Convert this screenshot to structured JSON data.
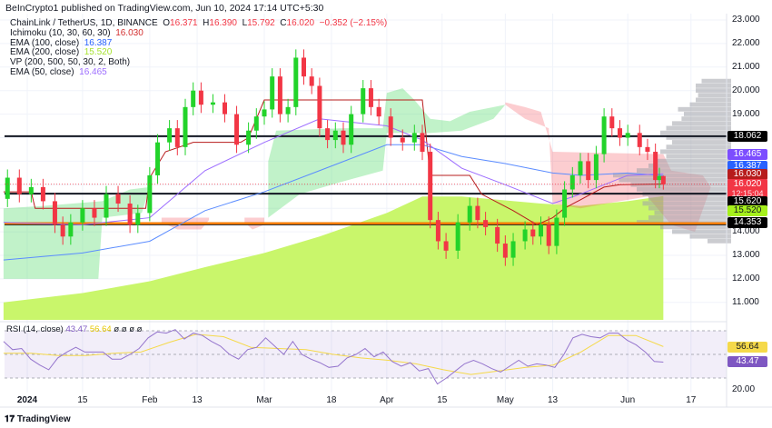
{
  "header": {
    "published": "BeInCrypto1 published on TradingView.com, Jun 10, 2024 17:14 UTC+5:30"
  },
  "legend": {
    "symbol": "ChainLink / TetherUS, 1D, BINANCE",
    "o_label": "O",
    "o": "16.371",
    "h_label": "H",
    "h": "16.390",
    "l_label": "L",
    "l": "15.792",
    "c_label": "C",
    "c": "16.020",
    "change": "−0.352 (−2.15%)",
    "ichimoku_label": "Ichimoku (10, 30, 60, 30)",
    "ichimoku_value": "16.030",
    "ema100_label": "EMA (100, close)",
    "ema100_value": "16.387",
    "ema200_label": "EMA (200, close)",
    "ema200_value": "15.520",
    "vp_label": "VP (200, 500, 50, 30, 2, Both)",
    "ema50_label": "EMA (50, close)",
    "ema50_value": "16.465"
  },
  "rsi_legend": {
    "label": "RSI (14, close)",
    "value": "43.47",
    "ma": "56.64",
    "extra": "ø ø ø ø"
  },
  "price_axis": {
    "ticks": [
      "23.000",
      "22.000",
      "21.000",
      "20.000",
      "19.000",
      "14.000",
      "13.000",
      "12.000",
      "11.000"
    ],
    "tags": [
      {
        "value": "18.062",
        "bg": "#000000",
        "fg": "#ffffff"
      },
      {
        "value": "16.465",
        "bg": "#7c4dff",
        "fg": "#ffffff"
      },
      {
        "value": "16.387",
        "bg": "#2962ff",
        "fg": "#ffffff"
      },
      {
        "value": "16.030",
        "bg": "#b71c1c",
        "fg": "#ffffff"
      },
      {
        "value": "16.020",
        "bg": "#f23645",
        "fg": "#ffffff"
      },
      {
        "value": "15.620",
        "bg": "#000000",
        "fg": "#ffffff"
      },
      {
        "value": "15.520",
        "bg": "#a6f01c",
        "fg": "#131722"
      },
      {
        "value": "14.353",
        "bg": "#000000",
        "fg": "#ffffff"
      }
    ],
    "countdown": "12:15:04"
  },
  "rsi_axis": {
    "ma_tag": "56.64",
    "rsi_tag": "43.47",
    "tick": "20.00"
  },
  "time_axis": [
    {
      "label": "2024",
      "date": "2024-01-01",
      "bold": true
    },
    {
      "label": "15",
      "date": "2024-01-15"
    },
    {
      "label": "Feb",
      "date": "2024-02-01"
    },
    {
      "label": "13",
      "date": "2024-02-13"
    },
    {
      "label": "Mar",
      "date": "2024-03-01"
    },
    {
      "label": "18",
      "date": "2024-03-18"
    },
    {
      "label": "Apr",
      "date": "2024-04-01"
    },
    {
      "label": "15",
      "date": "2024-04-15"
    },
    {
      "label": "May",
      "date": "2024-05-01"
    },
    {
      "label": "13",
      "date": "2024-05-13"
    },
    {
      "label": "Jun",
      "date": "2024-06-01"
    },
    {
      "label": "17",
      "date": "2024-06-17"
    }
  ],
  "branding": "TradingView",
  "colors": {
    "up": "#22d32a",
    "down": "#f23645",
    "ema50": "#9c6cff",
    "ema100": "#5b8cff",
    "ema200_fill": "#c9f66b",
    "base_line": "#b71c1c",
    "rsi": "#9575cd",
    "rsi_ma": "#f5d94a",
    "level_orange": "#f57c00"
  },
  "chart_data": {
    "type": "candlestick",
    "ylim": [
      10.4,
      23.3
    ],
    "levels": [
      18.062,
      15.62,
      14.353
    ],
    "candles": [
      [
        "2023-12-27",
        16.3
      ],
      [
        "2023-12-30",
        15.6
      ],
      [
        "2024-01-02",
        15.9
      ],
      [
        "2024-01-05",
        15.3
      ],
      [
        "2024-01-08",
        14.3
      ],
      [
        "2024-01-10",
        13.8
      ],
      [
        "2024-01-12",
        14.4
      ],
      [
        "2024-01-15",
        15.0
      ],
      [
        "2024-01-18",
        14.6
      ],
      [
        "2024-01-21",
        15.6
      ],
      [
        "2024-01-24",
        15.2
      ],
      [
        "2024-01-27",
        14.3
      ],
      [
        "2024-01-29",
        14.8
      ],
      [
        "2024-02-01",
        16.4
      ],
      [
        "2024-02-03",
        17.8
      ],
      [
        "2024-02-06",
        18.4
      ],
      [
        "2024-02-08",
        17.6
      ],
      [
        "2024-02-10",
        19.3
      ],
      [
        "2024-02-12",
        20.0
      ],
      [
        "2024-02-14",
        19.4
      ],
      [
        "2024-02-17",
        19.5
      ],
      [
        "2024-02-20",
        19.0
      ],
      [
        "2024-02-23",
        17.7
      ],
      [
        "2024-02-26",
        18.3
      ],
      [
        "2024-02-28",
        18.9
      ],
      [
        "2024-03-01",
        19.2
      ],
      [
        "2024-03-03",
        20.6
      ],
      [
        "2024-03-05",
        19.0
      ],
      [
        "2024-03-07",
        19.3
      ],
      [
        "2024-03-09",
        21.4
      ],
      [
        "2024-03-11",
        20.6
      ],
      [
        "2024-03-13",
        20.2
      ],
      [
        "2024-03-15",
        18.4
      ],
      [
        "2024-03-17",
        17.9
      ],
      [
        "2024-03-19",
        18.3
      ],
      [
        "2024-03-21",
        17.7
      ],
      [
        "2024-03-23",
        19.0
      ],
      [
        "2024-03-26",
        20.1
      ],
      [
        "2024-03-28",
        19.3
      ],
      [
        "2024-03-30",
        18.9
      ],
      [
        "2024-04-02",
        18.0
      ],
      [
        "2024-04-05",
        17.8
      ],
      [
        "2024-04-08",
        18.2
      ],
      [
        "2024-04-10",
        17.4
      ],
      [
        "2024-04-12",
        14.5
      ],
      [
        "2024-04-14",
        13.6
      ],
      [
        "2024-04-16",
        13.2
      ],
      [
        "2024-04-19",
        14.4
      ],
      [
        "2024-04-22",
        15.1
      ],
      [
        "2024-04-24",
        14.5
      ],
      [
        "2024-04-26",
        14.2
      ],
      [
        "2024-04-29",
        13.5
      ],
      [
        "2024-05-01",
        12.9
      ],
      [
        "2024-05-03",
        13.6
      ],
      [
        "2024-05-06",
        14.1
      ],
      [
        "2024-05-08",
        13.8
      ],
      [
        "2024-05-10",
        14.3
      ],
      [
        "2024-05-12",
        13.4
      ],
      [
        "2024-05-14",
        14.6
      ],
      [
        "2024-05-16",
        15.8
      ],
      [
        "2024-05-18",
        16.4
      ],
      [
        "2024-05-20",
        17.0
      ],
      [
        "2024-05-22",
        16.2
      ],
      [
        "2024-05-24",
        17.3
      ],
      [
        "2024-05-26",
        18.9
      ],
      [
        "2024-05-28",
        18.4
      ],
      [
        "2024-05-30",
        18.0
      ],
      [
        "2024-06-01",
        18.2
      ],
      [
        "2024-06-04",
        17.6
      ],
      [
        "2024-06-06",
        17.4
      ],
      [
        "2024-06-08",
        16.2
      ],
      [
        "2024-06-09",
        16.371
      ]
    ],
    "last_candle": {
      "date": "2024-06-10",
      "open": 16.371,
      "high": 16.39,
      "low": 15.792,
      "close": 16.02
    },
    "ema50": [
      [
        "2023-12-26",
        14.4
      ],
      [
        "2024-01-15",
        14.3
      ],
      [
        "2024-02-01",
        14.6
      ],
      [
        "2024-02-15",
        16.6
      ],
      [
        "2024-03-01",
        17.8
      ],
      [
        "2024-03-15",
        18.8
      ],
      [
        "2024-04-01",
        18.5
      ],
      [
        "2024-04-10",
        17.9
      ],
      [
        "2024-04-20",
        16.7
      ],
      [
        "2024-05-01",
        16.0
      ],
      [
        "2024-05-13",
        15.2
      ],
      [
        "2024-05-20",
        15.6
      ],
      [
        "2024-06-01",
        16.4
      ],
      [
        "2024-06-10",
        16.465
      ]
    ],
    "ema100": [
      [
        "2023-12-26",
        12.8
      ],
      [
        "2024-01-15",
        13.1
      ],
      [
        "2024-02-01",
        13.6
      ],
      [
        "2024-02-15",
        14.9
      ],
      [
        "2024-03-01",
        15.7
      ],
      [
        "2024-03-15",
        16.6
      ],
      [
        "2024-04-01",
        17.7
      ],
      [
        "2024-04-10",
        17.7
      ],
      [
        "2024-04-20",
        17.2
      ],
      [
        "2024-05-01",
        16.9
      ],
      [
        "2024-05-13",
        16.5
      ],
      [
        "2024-05-20",
        16.4
      ],
      [
        "2024-06-01",
        16.5
      ],
      [
        "2024-06-10",
        16.387
      ]
    ],
    "ema200": [
      [
        "2023-12-26",
        11.0
      ],
      [
        "2024-01-15",
        11.4
      ],
      [
        "2024-02-01",
        11.9
      ],
      [
        "2024-02-15",
        12.5
      ],
      [
        "2024-03-01",
        13.1
      ],
      [
        "2024-03-15",
        13.8
      ],
      [
        "2024-04-01",
        14.8
      ],
      [
        "2024-04-10",
        15.5
      ],
      [
        "2024-04-20",
        15.5
      ],
      [
        "2024-05-10",
        15.2
      ],
      [
        "2024-05-20",
        15.1
      ],
      [
        "2024-06-01",
        15.3
      ],
      [
        "2024-06-10",
        15.52
      ]
    ],
    "ichimoku_base": [
      [
        "2023-12-26",
        15.7
      ],
      [
        "2024-01-02",
        15.7
      ],
      [
        "2024-01-03",
        15.0
      ],
      [
        "2024-01-31",
        15.0
      ],
      [
        "2024-02-01",
        16.3
      ],
      [
        "2024-02-05",
        17.4
      ],
      [
        "2024-02-12",
        17.8
      ],
      [
        "2024-02-24",
        17.8
      ],
      [
        "2024-02-26",
        18.0
      ],
      [
        "2024-03-01",
        19.6
      ],
      [
        "2024-04-10",
        19.6
      ],
      [
        "2024-04-12",
        16.4
      ],
      [
        "2024-04-22",
        16.4
      ],
      [
        "2024-04-25",
        15.6
      ],
      [
        "2024-05-03",
        14.9
      ],
      [
        "2024-05-09",
        14.3
      ],
      [
        "2024-05-13",
        14.6
      ],
      [
        "2024-05-16",
        15.0
      ],
      [
        "2024-05-26",
        15.9
      ],
      [
        "2024-05-30",
        16.0
      ],
      [
        "2024-06-10",
        16.03
      ]
    ],
    "ichimoku_cloud": [
      {
        "kind": "bullish",
        "upper": [
          [
            "2023-12-26",
            15.0
          ],
          [
            "2024-01-05",
            15.1
          ],
          [
            "2024-01-20",
            15.3
          ],
          [
            "2024-01-27",
            15.8
          ],
          [
            "2024-02-01",
            15.9
          ]
        ],
        "lower": [
          [
            "2023-12-26",
            12.0
          ],
          [
            "2024-01-19",
            12.0
          ],
          [
            "2024-01-20",
            14.6
          ],
          [
            "2024-01-30",
            14.8
          ],
          [
            "2024-02-01",
            15.9
          ]
        ]
      },
      {
        "kind": "bearish",
        "upper": [
          [
            "2024-02-04",
            14.6
          ],
          [
            "2024-02-16",
            14.6
          ]
        ],
        "lower": [
          [
            "2024-02-04",
            14.4
          ],
          [
            "2024-02-08",
            14.1
          ],
          [
            "2024-02-14",
            14.1
          ],
          [
            "2024-02-16",
            14.5
          ]
        ]
      },
      {
        "kind": "bearish",
        "upper": [
          [
            "2024-02-25",
            14.6
          ],
          [
            "2024-03-01",
            14.6
          ]
        ],
        "lower": [
          [
            "2024-02-25",
            14.4
          ],
          [
            "2024-02-27",
            14.1
          ],
          [
            "2024-03-01",
            14.3
          ]
        ]
      },
      {
        "kind": "bullish",
        "upper": [
          [
            "2024-03-02",
            17.0
          ],
          [
            "2024-03-04",
            18.3
          ],
          [
            "2024-03-21",
            18.4
          ],
          [
            "2024-03-31",
            18.4
          ],
          [
            "2024-04-01",
            19.9
          ],
          [
            "2024-04-05",
            20.1
          ],
          [
            "2024-04-08",
            19.6
          ],
          [
            "2024-04-12",
            18.8
          ],
          [
            "2024-04-17",
            18.7
          ],
          [
            "2024-04-22",
            19.1
          ],
          [
            "2024-04-28",
            19.3
          ],
          [
            "2024-05-01",
            19.4
          ]
        ],
        "lower": [
          [
            "2024-03-02",
            14.6
          ],
          [
            "2024-03-10",
            15.6
          ],
          [
            "2024-03-20",
            16.1
          ],
          [
            "2024-03-31",
            16.6
          ],
          [
            "2024-04-01",
            18.2
          ],
          [
            "2024-04-12",
            18.2
          ],
          [
            "2024-04-20",
            18.3
          ],
          [
            "2024-04-28",
            18.8
          ],
          [
            "2024-05-01",
            19.4
          ]
        ]
      },
      {
        "kind": "bearish",
        "upper": [
          [
            "2024-05-01",
            19.5
          ],
          [
            "2024-05-06",
            19.3
          ],
          [
            "2024-05-10",
            19.1
          ],
          [
            "2024-05-13",
            17.4
          ],
          [
            "2024-06-10",
            17.3
          ],
          [
            "2024-06-12",
            16.6
          ],
          [
            "2024-06-20",
            16.4
          ],
          [
            "2024-06-22",
            15.9
          ]
        ],
        "lower": [
          [
            "2024-05-01",
            19.4
          ],
          [
            "2024-05-06",
            18.8
          ],
          [
            "2024-05-12",
            18.4
          ],
          [
            "2024-05-13",
            15.2
          ],
          [
            "2024-05-20",
            15.0
          ],
          [
            "2024-05-30",
            15.3
          ],
          [
            "2024-06-06",
            15.5
          ],
          [
            "2024-06-12",
            14.3
          ],
          [
            "2024-06-18",
            14.0
          ],
          [
            "2024-06-22",
            15.9
          ]
        ]
      }
    ],
    "volume_profile": [
      [
        20.4,
        0.25
      ],
      [
        20.2,
        0.3
      ],
      [
        20.0,
        0.3
      ],
      [
        19.8,
        0.28
      ],
      [
        19.6,
        0.3
      ],
      [
        19.4,
        0.35
      ],
      [
        19.2,
        0.45
      ],
      [
        19.0,
        0.4
      ],
      [
        18.8,
        0.42
      ],
      [
        18.6,
        0.5
      ],
      [
        18.4,
        0.55
      ],
      [
        18.2,
        0.6
      ],
      [
        18.0,
        0.55
      ],
      [
        17.8,
        0.5
      ],
      [
        17.6,
        0.55
      ],
      [
        17.4,
        0.6
      ],
      [
        17.2,
        0.55
      ],
      [
        17.0,
        0.65
      ],
      [
        16.8,
        0.7
      ],
      [
        16.6,
        0.8
      ],
      [
        16.4,
        1.0
      ],
      [
        16.2,
        0.95
      ],
      [
        16.0,
        0.85
      ],
      [
        15.8,
        0.8
      ],
      [
        15.6,
        0.75
      ],
      [
        15.4,
        0.7
      ],
      [
        15.2,
        0.75
      ],
      [
        15.0,
        0.7
      ],
      [
        14.8,
        0.65
      ],
      [
        14.6,
        0.7
      ],
      [
        14.4,
        0.8
      ],
      [
        14.2,
        0.6
      ],
      [
        14.0,
        0.5
      ],
      [
        13.8,
        0.35
      ],
      [
        13.6,
        0.2
      ]
    ],
    "rsi": {
      "start": "2023-12-26",
      "end": "2024-06-10",
      "levels": [
        70,
        50,
        30
      ],
      "values": [
        61,
        54,
        55,
        46,
        41,
        37,
        47,
        52,
        56,
        52,
        52,
        52,
        46,
        46,
        50,
        55,
        64,
        69,
        68,
        71,
        63,
        68,
        66,
        61,
        57,
        50,
        46,
        54,
        56,
        64,
        57,
        50,
        61,
        50,
        46,
        43,
        39,
        40,
        47,
        50,
        55,
        48,
        52,
        44,
        40,
        43,
        36,
        38,
        25,
        30,
        36,
        42,
        45,
        42,
        38,
        35,
        40,
        45,
        40,
        42,
        41,
        39,
        50,
        64,
        67,
        65,
        64,
        68,
        68,
        62,
        58,
        52,
        44,
        43.47
      ],
      "ma": [
        51,
        51,
        49,
        49,
        51,
        52,
        60,
        67,
        65,
        56,
        55,
        54,
        50,
        47,
        45,
        42,
        37,
        33,
        36,
        39,
        41,
        52,
        66,
        66,
        56.64
      ]
    }
  }
}
